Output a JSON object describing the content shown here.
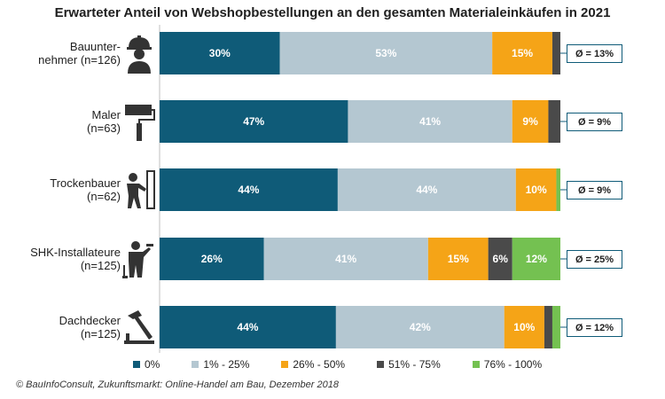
{
  "chart_data": {
    "type": "bar",
    "orientation": "horizontal",
    "stacked": true,
    "percent": true,
    "title": "Erwarteter Anteil von Webshopbestellungen an den gesamten Materialeinkäufen in 2021",
    "categories": [
      [
        "Bauunter-",
        "nehmer (n=126)"
      ],
      [
        "Maler",
        "(n=63)"
      ],
      [
        "Trockenbauer",
        "(n=62)"
      ],
      [
        "SHK-Installateure",
        "(n=125)"
      ],
      [
        "Dachdecker",
        "(n=125)"
      ]
    ],
    "series": [
      {
        "name": "0%",
        "color": "#0f5b78",
        "values": [
          30,
          47,
          44,
          26,
          44
        ]
      },
      {
        "name": "1% - 25%",
        "color": "#b4c7d1",
        "values": [
          53,
          41,
          44,
          41,
          42
        ]
      },
      {
        "name": "26% - 50%",
        "color": "#f5a417",
        "values": [
          15,
          9,
          10,
          15,
          10
        ]
      },
      {
        "name": "51% - 75%",
        "color": "#4a4a4a",
        "values": [
          2,
          3,
          0,
          6,
          2
        ]
      },
      {
        "name": "76% - 100%",
        "color": "#74c151",
        "values": [
          0,
          0,
          1,
          12,
          2
        ]
      }
    ],
    "value_labels": [
      [
        "30%",
        "53%",
        "15%",
        "",
        ""
      ],
      [
        "47%",
        "41%",
        "9%",
        "",
        ""
      ],
      [
        "44%",
        "44%",
        "10%",
        "",
        ""
      ],
      [
        "26%",
        "41%",
        "15%",
        "6%",
        "12%"
      ],
      [
        "44%",
        "42%",
        "10%",
        "",
        ""
      ]
    ],
    "averages": [
      "Ø = 13%",
      "Ø = 9%",
      "Ø = 9%",
      "Ø = 25%",
      "Ø = 12%"
    ],
    "xlim": [
      0,
      100
    ],
    "legend_position": "bottom"
  },
  "icons": [
    "construction-worker-icon",
    "paint-roller-icon",
    "drywall-worker-icon",
    "plumber-icon",
    "roofer-hammer-icon"
  ],
  "source": "© BauInfoConsult, Zukunftsmarkt: Online-Handel am Bau, Dezember 2018"
}
